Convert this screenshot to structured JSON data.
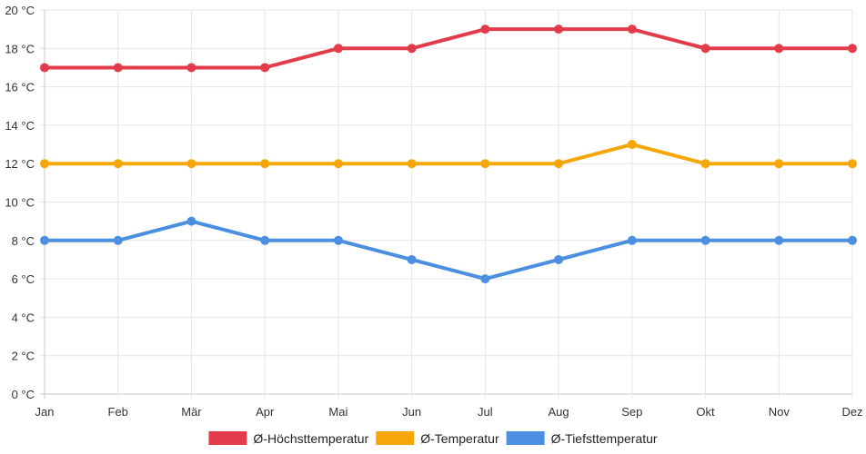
{
  "chart_data": {
    "type": "line",
    "title": "",
    "xlabel": "",
    "ylabel": "",
    "categories": [
      "Jan",
      "Feb",
      "Mär",
      "Apr",
      "Mai",
      "Jun",
      "Jul",
      "Aug",
      "Sep",
      "Okt",
      "Nov",
      "Dez"
    ],
    "ylim": [
      0,
      20
    ],
    "y_ticks": [
      0,
      2,
      4,
      6,
      8,
      10,
      12,
      14,
      16,
      18,
      20
    ],
    "y_unit": "°C",
    "y_tick_labels": [
      "0 °C",
      "2 °C",
      "4 °C",
      "6 °C",
      "8 °C",
      "10 °C",
      "12 °C",
      "14 °C",
      "16 °C",
      "18 °C",
      "20 °C"
    ],
    "grid": true,
    "legend_position": "bottom",
    "series": [
      {
        "name": "Ø-Höchsttemperatur",
        "color": "#e23b4a",
        "values": [
          17,
          17,
          17,
          17,
          18,
          18,
          19,
          19,
          19,
          18,
          18,
          18
        ]
      },
      {
        "name": "Ø-Temperatur",
        "color": "#f5a70a",
        "values": [
          12,
          12,
          12,
          12,
          12,
          12,
          12,
          12,
          13,
          12,
          12,
          12
        ]
      },
      {
        "name": "Ø-Tiefsttemperatur",
        "color": "#4a8fe0",
        "values": [
          8,
          8,
          9,
          8,
          8,
          7,
          6,
          7,
          8,
          8,
          8,
          8
        ]
      }
    ]
  }
}
